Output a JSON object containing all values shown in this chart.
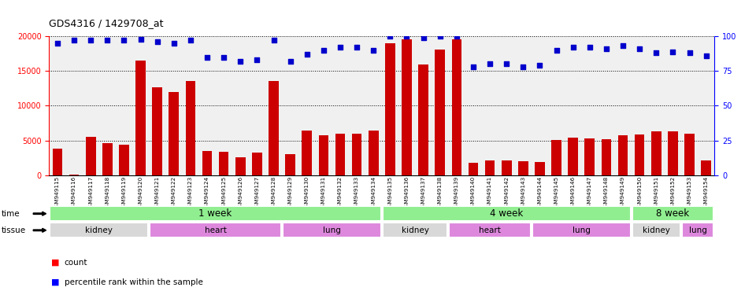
{
  "title": "GDS4316 / 1429708_at",
  "samples": [
    "GSM949115",
    "GSM949116",
    "GSM949117",
    "GSM949118",
    "GSM949119",
    "GSM949120",
    "GSM949121",
    "GSM949122",
    "GSM949123",
    "GSM949124",
    "GSM949125",
    "GSM949126",
    "GSM949127",
    "GSM949128",
    "GSM949129",
    "GSM949130",
    "GSM949131",
    "GSM949132",
    "GSM949133",
    "GSM949134",
    "GSM949135",
    "GSM949136",
    "GSM949137",
    "GSM949138",
    "GSM949139",
    "GSM949140",
    "GSM949141",
    "GSM949142",
    "GSM949143",
    "GSM949144",
    "GSM949145",
    "GSM949146",
    "GSM949147",
    "GSM949148",
    "GSM949149",
    "GSM949150",
    "GSM949151",
    "GSM949152",
    "GSM949153",
    "GSM949154"
  ],
  "counts": [
    3800,
    100,
    5500,
    4600,
    4400,
    16500,
    12600,
    12000,
    13500,
    3500,
    3400,
    2600,
    3200,
    13500,
    3000,
    6400,
    5700,
    6000,
    6000,
    6400,
    19000,
    19500,
    15900,
    18100,
    19500,
    1800,
    2100,
    2100,
    2000,
    1900,
    5100,
    5400,
    5300,
    5200,
    5700,
    5800,
    6300,
    6300,
    6000,
    2100
  ],
  "percentile_ranks": [
    95,
    97,
    97,
    97,
    97,
    98,
    96,
    95,
    97,
    85,
    85,
    82,
    83,
    97,
    82,
    87,
    90,
    92,
    92,
    90,
    100,
    100,
    99,
    100,
    100,
    78,
    80,
    80,
    78,
    79,
    90,
    92,
    92,
    91,
    93,
    91,
    88,
    89,
    88,
    86
  ],
  "bar_color": "#cc0000",
  "dot_color": "#0000cc",
  "time_groups": [
    {
      "label": "1 week",
      "start": 0,
      "end": 20,
      "color": "#90ee90"
    },
    {
      "label": "4 week",
      "start": 20,
      "end": 35,
      "color": "#90ee90"
    },
    {
      "label": "8 week",
      "start": 35,
      "end": 40,
      "color": "#90ee90"
    }
  ],
  "tissue_groups": [
    {
      "label": "kidney",
      "start": 0,
      "end": 6,
      "color": "#d8d8d8"
    },
    {
      "label": "heart",
      "start": 6,
      "end": 14,
      "color": "#dd88dd"
    },
    {
      "label": "lung",
      "start": 14,
      "end": 20,
      "color": "#dd88dd"
    },
    {
      "label": "kidney",
      "start": 20,
      "end": 24,
      "color": "#d8d8d8"
    },
    {
      "label": "heart",
      "start": 24,
      "end": 29,
      "color": "#dd88dd"
    },
    {
      "label": "lung",
      "start": 29,
      "end": 35,
      "color": "#dd88dd"
    },
    {
      "label": "kidney",
      "start": 35,
      "end": 38,
      "color": "#d8d8d8"
    },
    {
      "label": "lung",
      "start": 38,
      "end": 40,
      "color": "#dd88dd"
    }
  ],
  "legend_count_label": "count",
  "legend_pct_label": "percentile rank within the sample"
}
